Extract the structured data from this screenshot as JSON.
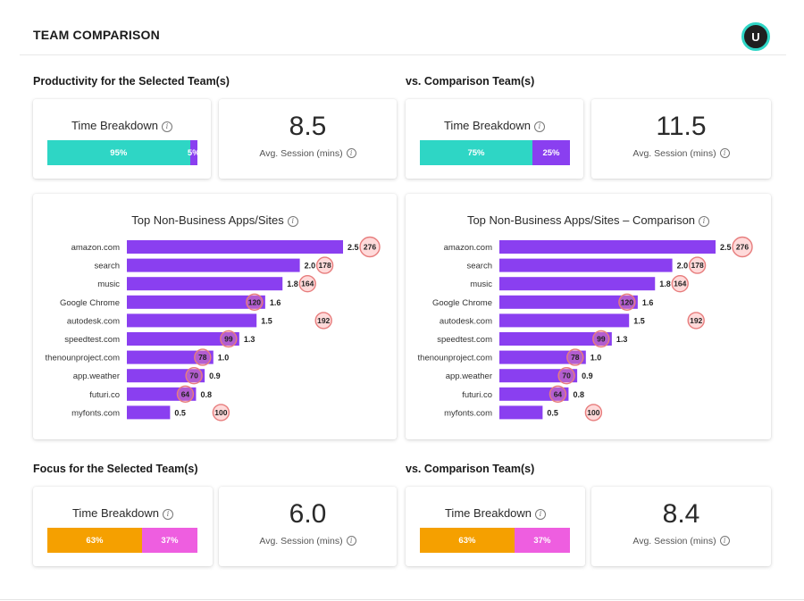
{
  "header": {
    "title": "TEAM COMPARISON",
    "avatar_initial": "U"
  },
  "productivity": {
    "title": "Productivity for the Selected Team(s)",
    "comparison_title": "vs. Comparison Team(s)",
    "selected": {
      "breakdown_label": "Time Breakdown",
      "segments": [
        {
          "label": "95%",
          "value": 95,
          "color": "#2ed6c5"
        },
        {
          "label": "5%",
          "value": 5,
          "color": "#8a3ff0"
        }
      ],
      "avg_session": "8.5",
      "avg_session_label": "Avg. Session (mins)"
    },
    "comparison": {
      "breakdown_label": "Time Breakdown",
      "segments": [
        {
          "label": "75%",
          "value": 75,
          "color": "#2ed6c5"
        },
        {
          "label": "25%",
          "value": 25,
          "color": "#8a3ff0"
        }
      ],
      "avg_session": "11.5",
      "avg_session_label": "Avg. Session (mins)"
    }
  },
  "chart_data": [
    {
      "type": "bar",
      "orientation": "horizontal",
      "title": "Top Non-Business Apps/Sites",
      "categories": [
        "amazon.com",
        "search",
        "music",
        "Google Chrome",
        "autodesk.com",
        "speedtest.com",
        "thenounproject.com",
        "app.weather",
        "futuri.co",
        "myfonts.com"
      ],
      "values": [
        2.5,
        2.0,
        1.8,
        1.6,
        1.5,
        1.3,
        1.0,
        0.9,
        0.8,
        0.5
      ],
      "value_labels": [
        "2.5",
        "2.0",
        "1.8",
        "1.6",
        "1.5",
        "1.3",
        "1.0",
        "0.9",
        "0.8",
        "0.5"
      ],
      "counts": [
        276,
        178,
        164,
        120,
        192,
        99,
        78,
        70,
        64,
        100
      ],
      "xlim": [
        0,
        2.5
      ],
      "bar_color": "#8a3ff0"
    },
    {
      "type": "bar",
      "orientation": "horizontal",
      "title": "Top Non-Business Apps/Sites – Comparison",
      "categories": [
        "amazon.com",
        "search",
        "music",
        "Google Chrome",
        "autodesk.com",
        "speedtest.com",
        "thenounproject.com",
        "app.weather",
        "futuri.co",
        "myfonts.com"
      ],
      "values": [
        2.5,
        2.0,
        1.8,
        1.6,
        1.5,
        1.3,
        1.0,
        0.9,
        0.8,
        0.5
      ],
      "value_labels": [
        "2.5",
        "2.0",
        "1.8",
        "1.6",
        "1.5",
        "1.3",
        "1.0",
        "0.9",
        "0.8",
        "0.5"
      ],
      "counts": [
        276,
        178,
        164,
        120,
        192,
        99,
        78,
        70,
        64,
        100
      ],
      "xlim": [
        0,
        2.5
      ],
      "bar_color": "#8a3ff0"
    }
  ],
  "focus": {
    "title": "Focus for the Selected Team(s)",
    "comparison_title": "vs. Comparison Team(s)",
    "selected": {
      "breakdown_label": "Time Breakdown",
      "segments": [
        {
          "label": "63%",
          "value": 63,
          "color": "#f5a000"
        },
        {
          "label": "37%",
          "value": 37,
          "color": "#ee5ee0"
        }
      ],
      "avg_session": "6.0",
      "avg_session_label": "Avg. Session (mins)"
    },
    "comparison": {
      "breakdown_label": "Time Breakdown",
      "segments": [
        {
          "label": "63%",
          "value": 63,
          "color": "#f5a000"
        },
        {
          "label": "37%",
          "value": 37,
          "color": "#ee5ee0"
        }
      ],
      "avg_session": "8.4",
      "avg_session_label": "Avg. Session (mins)"
    }
  },
  "icons": {
    "info": "info-icon",
    "info_glyph": "i"
  }
}
